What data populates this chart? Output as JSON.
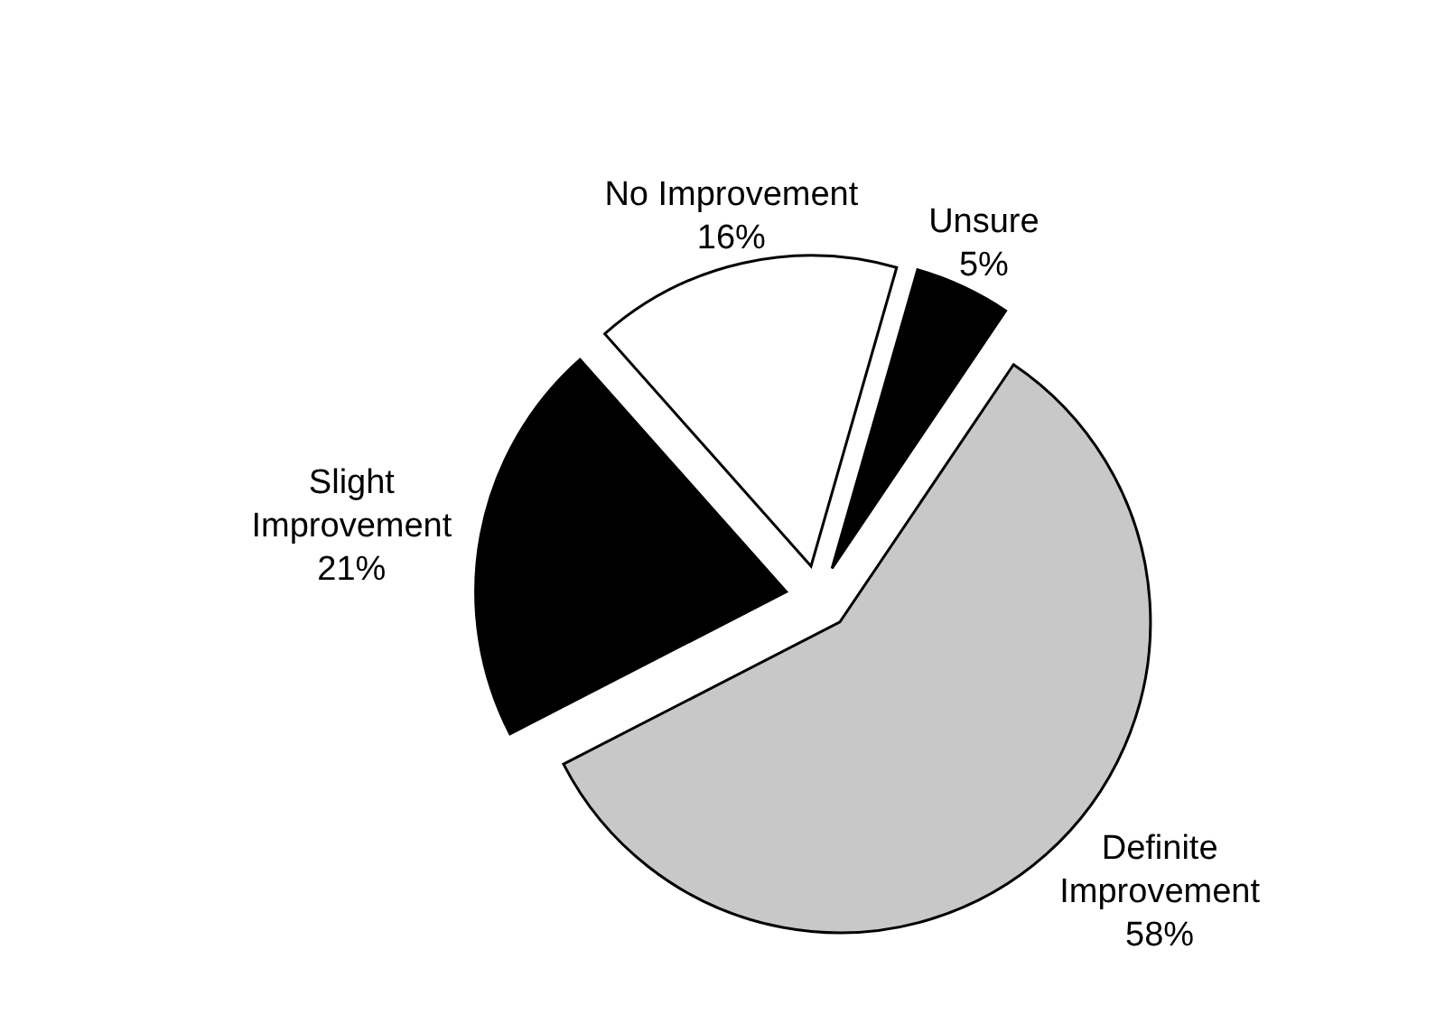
{
  "chart_data": {
    "type": "pie",
    "categories": [
      "Definite Improvement",
      "Slight Improvement",
      "No Improvement",
      "Unsure"
    ],
    "values": [
      58,
      21,
      16,
      5
    ],
    "value_labels": [
      "58%",
      "21%",
      "16%",
      "5%"
    ],
    "colors": [
      "#c8c8c8",
      "#000000",
      "#ffffff",
      "#000000"
    ]
  }
}
